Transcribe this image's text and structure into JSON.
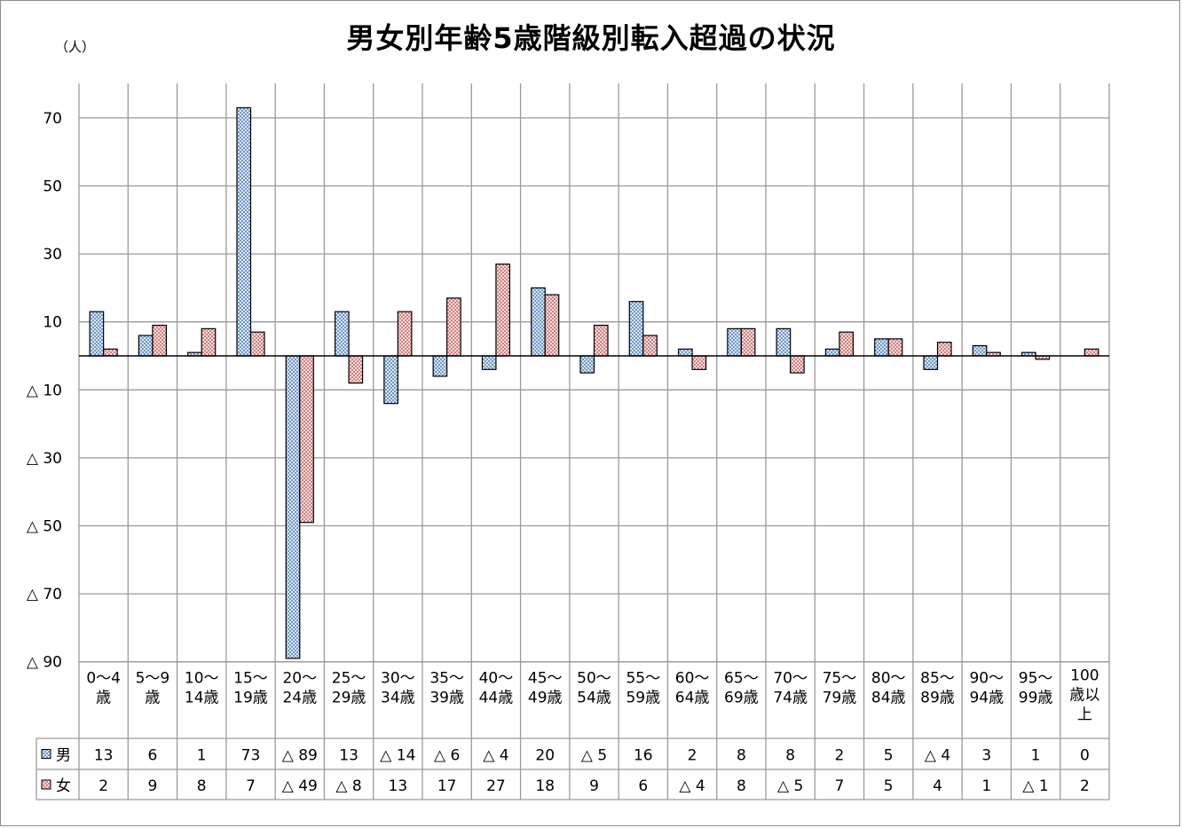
{
  "chart_data": {
    "type": "bar",
    "title": "男女別年齢5歳階級別転入超過の状況",
    "unit": "（人）",
    "categories": [
      [
        "0～4",
        "歳"
      ],
      [
        "5～9",
        "歳"
      ],
      [
        "10～",
        "14歳"
      ],
      [
        "15～",
        "19歳"
      ],
      [
        "20～",
        "24歳"
      ],
      [
        "25～",
        "29歳"
      ],
      [
        "30～",
        "34歳"
      ],
      [
        "35～",
        "39歳"
      ],
      [
        "40～",
        "44歳"
      ],
      [
        "45～",
        "49歳"
      ],
      [
        "50～",
        "54歳"
      ],
      [
        "55～",
        "59歳"
      ],
      [
        "60～",
        "64歳"
      ],
      [
        "65～",
        "69歳"
      ],
      [
        "70～",
        "74歳"
      ],
      [
        "75～",
        "79歳"
      ],
      [
        "80～",
        "84歳"
      ],
      [
        "85～",
        "89歳"
      ],
      [
        "90～",
        "94歳"
      ],
      [
        "95～",
        "99歳"
      ],
      [
        "100",
        "歳以",
        "上"
      ]
    ],
    "series": [
      {
        "name": "男",
        "color": "#4f81bd",
        "values": [
          13,
          6,
          1,
          73,
          -89,
          13,
          -14,
          -6,
          -4,
          20,
          -5,
          16,
          2,
          8,
          8,
          2,
          5,
          -4,
          3,
          1,
          0
        ],
        "labels": [
          "13",
          "6",
          "1",
          "73",
          "△ 89",
          "13",
          "△ 14",
          "△ 6",
          "△ 4",
          "20",
          "△ 5",
          "16",
          "2",
          "8",
          "8",
          "2",
          "5",
          "△ 4",
          "3",
          "1",
          "0"
        ]
      },
      {
        "name": "女",
        "color": "#c0504d",
        "values": [
          2,
          9,
          8,
          7,
          -49,
          -8,
          13,
          17,
          27,
          18,
          9,
          6,
          -4,
          8,
          -5,
          7,
          5,
          4,
          1,
          -1,
          2
        ],
        "labels": [
          "2",
          "9",
          "8",
          "7",
          "△ 49",
          "△ 8",
          "13",
          "17",
          "27",
          "18",
          "9",
          "6",
          "△ 4",
          "8",
          "△ 5",
          "7",
          "5",
          "4",
          "1",
          "△ 1",
          "2"
        ]
      }
    ],
    "ylim": [
      -90,
      80
    ],
    "yticks": [
      70,
      50,
      30,
      10,
      -10,
      -30,
      -50,
      -70,
      -90
    ],
    "ytick_labels": [
      "70",
      "50",
      "30",
      "10",
      "△ 10",
      "△ 30",
      "△ 50",
      "△ 70",
      "△ 90"
    ],
    "grid": true,
    "legend": "data-table"
  }
}
